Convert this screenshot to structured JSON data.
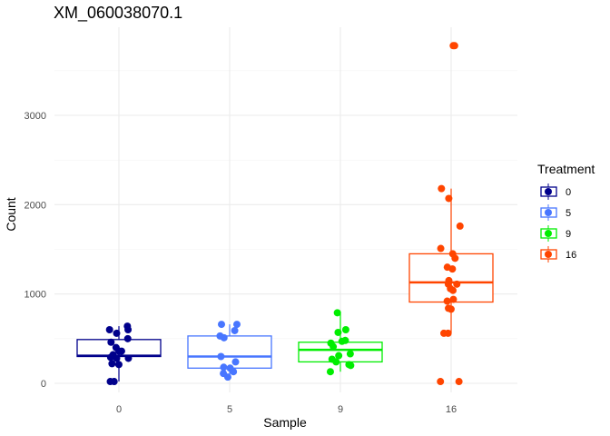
{
  "chart_data": {
    "type": "boxplot-jitter",
    "title": "XM_060038070.1",
    "xlabel": "Sample",
    "ylabel": "Count",
    "categories": [
      "0",
      "5",
      "9",
      "16"
    ],
    "y_ticks": [
      0,
      1000,
      2000,
      3000
    ],
    "ylim": [
      -100,
      3900
    ],
    "grid": true,
    "legend": {
      "title": "Treatment",
      "position": "right",
      "entries": [
        "0",
        "5",
        "9",
        "16"
      ]
    },
    "series": [
      {
        "name": "0",
        "color": "#00008B",
        "box": {
          "whisker_low": 20,
          "q1": 300,
          "median": 310,
          "q3": 490,
          "whisker_high": 640
        },
        "points": [
          640,
          600,
          600,
          560,
          500,
          460,
          400,
          360,
          360,
          320,
          290,
          280,
          280,
          220,
          210,
          20,
          20
        ]
      },
      {
        "name": "5",
        "color": "#4876FF",
        "box": {
          "whisker_low": 70,
          "q1": 170,
          "median": 300,
          "q3": 530,
          "whisker_high": 660
        },
        "points": [
          660,
          660,
          590,
          530,
          510,
          300,
          240,
          180,
          170,
          130,
          110,
          70
        ]
      },
      {
        "name": "9",
        "color": "#00EE00",
        "box": {
          "whisker_low": 130,
          "q1": 240,
          "median": 375,
          "q3": 460,
          "whisker_high": 790
        },
        "points": [
          790,
          600,
          570,
          480,
          470,
          450,
          410,
          330,
          310,
          270,
          240,
          210,
          200,
          130
        ]
      },
      {
        "name": "16",
        "color": "#FF4500",
        "box": {
          "whisker_low": 560,
          "q1": 910,
          "median": 1130,
          "q3": 1450,
          "whisker_high": 2180
        },
        "points": [
          3780,
          3780,
          2180,
          2070,
          1760,
          1510,
          1450,
          1400,
          1300,
          1280,
          1150,
          1110,
          1110,
          1060,
          1040,
          940,
          920,
          840,
          830,
          560,
          560,
          20,
          20
        ]
      }
    ]
  }
}
